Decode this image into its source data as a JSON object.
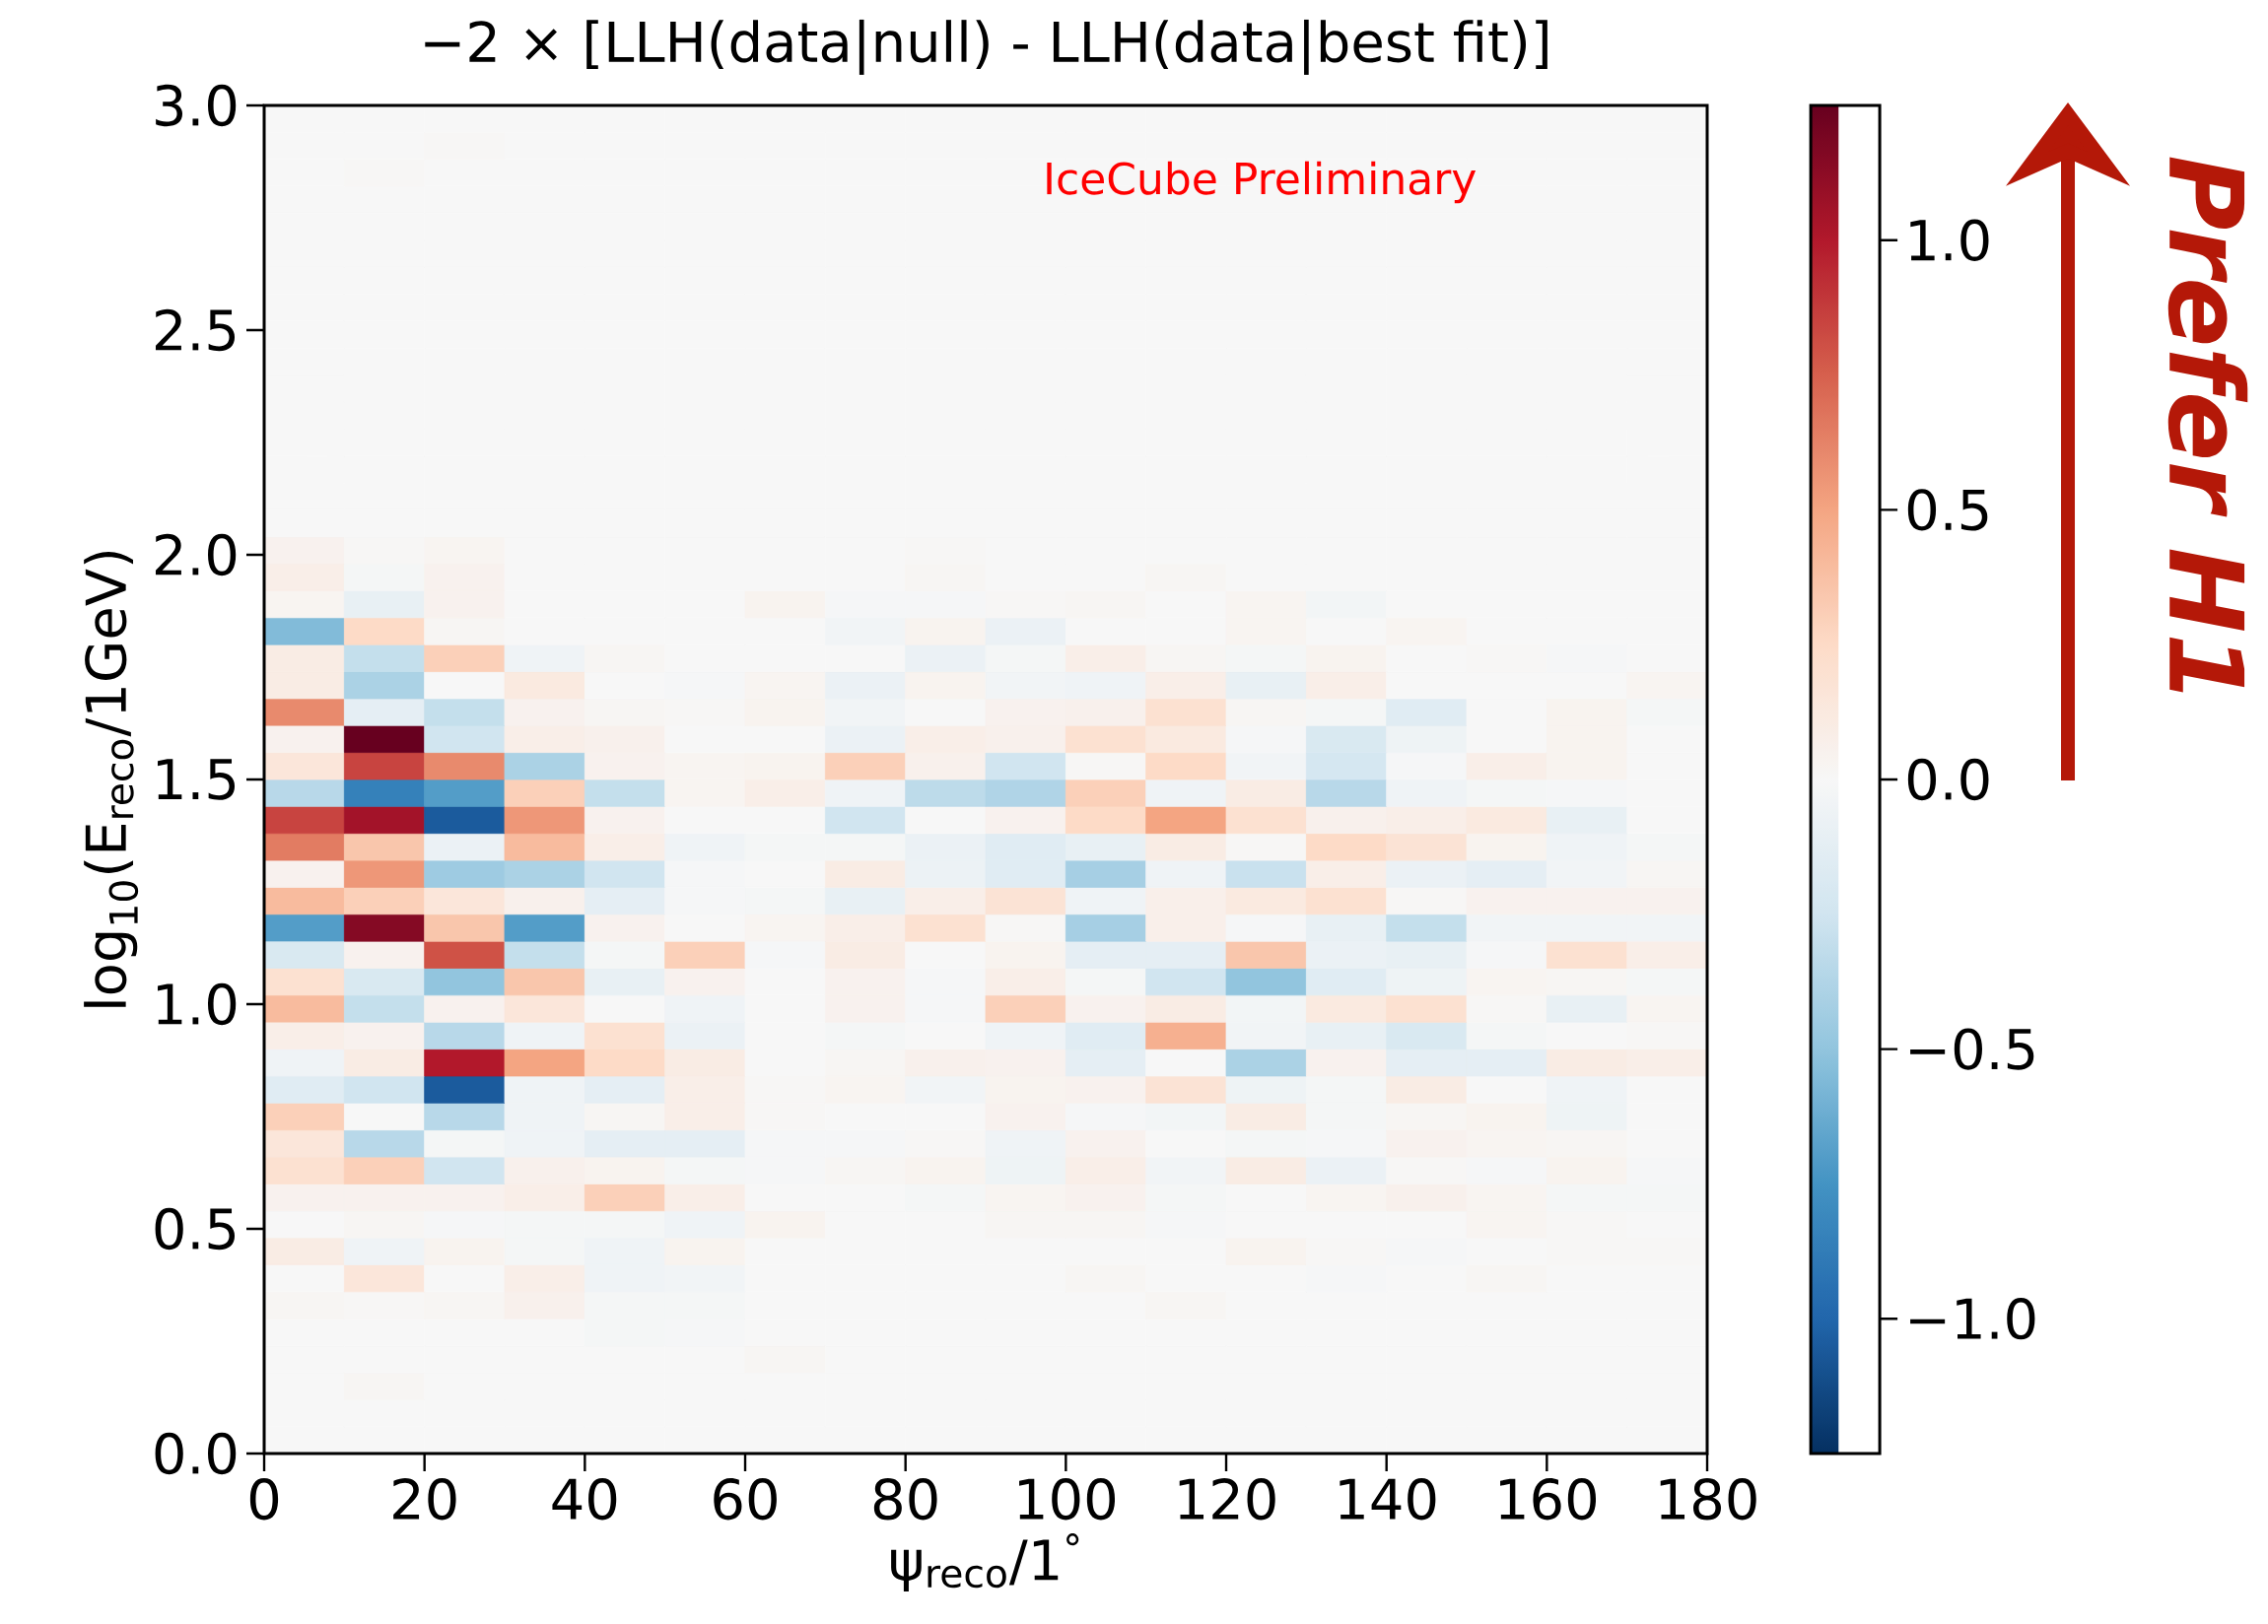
{
  "chart_data": {
    "type": "heatmap",
    "title": "−2 ×  [LLH(data|null) - LLH(data|best fit)]",
    "xlabel": "ψ$_{reco}$/1$^{°}$",
    "ylabel": "log$_{10}$(E$_{reco}$/1GeV)",
    "annotations": [
      "IceCube Preliminary",
      "Prefer H1"
    ],
    "xlim": [
      0,
      180
    ],
    "ylim": [
      0,
      3
    ],
    "xticks": [
      0,
      20,
      40,
      60,
      80,
      100,
      120,
      140,
      160,
      180
    ],
    "yticks": [
      {
        "value": 0,
        "label": "0.0"
      },
      {
        "value": 0.5,
        "label": "0.5"
      },
      {
        "value": 1,
        "label": "1.0"
      },
      {
        "value": 1.5,
        "label": "1.5"
      },
      {
        "value": 2,
        "label": "2.0"
      },
      {
        "value": 2.5,
        "label": "2.5"
      },
      {
        "value": 3,
        "label": "3.0"
      }
    ],
    "clim": [
      -1.25,
      1.25
    ],
    "cticks": [
      {
        "value": -1,
        "label": "−1.0"
      },
      {
        "value": -0.5,
        "label": "−0.5"
      },
      {
        "value": 0,
        "label": "0.0"
      },
      {
        "value": 0.5,
        "label": "0.5"
      },
      {
        "value": 1,
        "label": "1.0"
      }
    ],
    "cells": [
      [
        0,
        0,
        0,
        0,
        0,
        0,
        0,
        0,
        0,
        0,
        0,
        0,
        0,
        0,
        0,
        0,
        0,
        0
      ],
      [
        0,
        0,
        0.01,
        0,
        0,
        0,
        0,
        0,
        0,
        0,
        0,
        0,
        0,
        0,
        0,
        0,
        0,
        0
      ],
      [
        0,
        0.01,
        0,
        0,
        0,
        0,
        0,
        0,
        0,
        0,
        0,
        0,
        0,
        0,
        0,
        0,
        0,
        0
      ],
      [
        0,
        0,
        0,
        0,
        0,
        0,
        0,
        0,
        0,
        0,
        0,
        0,
        0,
        0,
        0,
        0,
        0,
        0
      ],
      [
        0,
        0,
        0,
        0,
        0,
        0,
        0,
        0,
        0,
        0,
        0,
        0,
        0,
        0,
        0,
        0,
        0,
        0
      ],
      [
        0,
        0,
        0,
        0,
        0,
        0,
        0,
        0,
        0,
        0,
        0,
        0,
        0,
        0,
        0,
        0,
        0,
        0
      ],
      [
        0,
        0,
        0,
        0,
        0,
        0,
        0,
        0,
        0,
        0,
        0,
        0,
        0,
        0,
        0,
        0,
        0,
        0
      ],
      [
        0,
        0,
        0,
        0,
        0,
        0,
        0,
        0,
        0,
        0,
        0,
        0,
        0,
        0,
        0,
        0,
        0,
        0
      ],
      [
        0,
        0,
        0,
        0,
        0,
        0,
        0,
        0,
        0,
        0,
        0,
        0,
        0,
        0,
        0,
        0,
        0,
        0
      ],
      [
        0,
        0,
        0,
        0,
        0,
        0,
        0,
        0,
        0,
        0,
        0,
        0,
        0,
        0,
        0,
        0,
        0,
        0
      ],
      [
        0,
        0,
        0,
        0,
        0,
        0,
        0,
        0,
        0,
        0,
        0,
        0,
        0,
        0,
        0,
        0,
        0,
        0
      ],
      [
        0,
        0,
        0,
        0,
        0,
        0,
        0,
        0,
        0,
        0,
        0,
        0,
        0,
        0,
        0,
        0,
        0,
        0
      ],
      [
        0,
        0,
        0,
        0,
        0,
        0,
        0,
        0,
        0,
        0,
        0,
        0,
        0,
        0,
        0,
        0,
        0,
        0
      ],
      [
        0,
        0,
        0,
        0,
        0,
        0,
        0,
        0,
        0,
        0,
        0,
        0,
        0,
        0,
        0,
        0,
        0,
        0
      ],
      [
        0,
        0,
        0,
        0,
        0,
        0,
        0,
        0,
        0,
        0,
        0,
        0,
        0,
        0,
        0,
        0,
        0,
        0
      ],
      [
        0,
        0,
        0,
        0,
        0,
        0,
        0,
        0,
        0,
        0,
        0,
        0,
        0,
        0,
        0,
        0,
        0,
        0
      ],
      [
        0.05,
        0.01,
        0.03,
        0,
        0,
        0,
        0,
        0,
        0.01,
        0,
        0,
        0,
        0,
        0,
        0,
        0,
        0,
        0
      ],
      [
        0.08,
        -0.02,
        0.05,
        0,
        0,
        0,
        0,
        0,
        0.02,
        0,
        0,
        0.02,
        0,
        0,
        0,
        0,
        0,
        0
      ],
      [
        0.03,
        -0.1,
        0.05,
        0,
        0,
        0,
        0.04,
        -0.01,
        -0.01,
        0.01,
        0.02,
        0,
        0.03,
        -0.03,
        0,
        0,
        0,
        0
      ],
      [
        -0.55,
        0.25,
        0.02,
        0,
        0,
        0,
        0,
        -0.04,
        0.04,
        -0.08,
        0,
        0,
        0.03,
        0,
        0.03,
        0,
        0,
        0
      ],
      [
        0.1,
        -0.3,
        0.3,
        -0.05,
        0.02,
        0,
        0,
        0,
        -0.08,
        -0.02,
        0.08,
        0.02,
        -0.02,
        0.04,
        0,
        0.01,
        -0.01,
        0
      ],
      [
        0.1,
        -0.4,
        0,
        0.12,
        0,
        -0.01,
        0.03,
        -0.08,
        0.04,
        -0.04,
        -0.05,
        0.08,
        -0.1,
        0.08,
        0,
        0,
        0,
        0.03
      ],
      [
        0.6,
        -0.12,
        -0.3,
        0.05,
        0.02,
        0.01,
        0.04,
        -0.04,
        0,
        0.05,
        0.06,
        0.2,
        0.02,
        -0.02,
        -0.15,
        0,
        0.04,
        -0.02
      ],
      [
        0.05,
        1.25,
        -0.25,
        0.08,
        0.06,
        0,
        0,
        -0.08,
        0.08,
        0.06,
        0.2,
        0.12,
        -0.01,
        -0.2,
        -0.06,
        0,
        0.04,
        0
      ],
      [
        0.15,
        0.85,
        0.6,
        -0.4,
        0.05,
        0.03,
        0.04,
        0.3,
        0.06,
        -0.25,
        0.01,
        0.25,
        -0.04,
        -0.22,
        -0.01,
        0.08,
        0.04,
        0
      ],
      [
        -0.35,
        -0.85,
        -0.7,
        0.3,
        -0.3,
        0.03,
        0.08,
        -0.05,
        -0.33,
        -0.38,
        0.3,
        -0.05,
        0.1,
        -0.35,
        -0.05,
        -0.02,
        -0.01,
        0
      ],
      [
        0.85,
        1.05,
        -1.05,
        0.55,
        0.05,
        0,
        0,
        -0.25,
        0,
        0.05,
        0.25,
        0.5,
        0.2,
        0.06,
        0.08,
        0.12,
        -0.1,
        0
      ],
      [
        0.65,
        0.35,
        -0.08,
        0.4,
        0.08,
        -0.05,
        -0.02,
        -0.02,
        -0.08,
        -0.15,
        -0.1,
        0.1,
        0.01,
        0.25,
        0.18,
        0.04,
        -0.05,
        -0.02
      ],
      [
        0.05,
        0.55,
        -0.45,
        -0.4,
        -0.25,
        -0.01,
        0,
        0.1,
        -0.07,
        -0.15,
        -0.42,
        -0.05,
        -0.28,
        0.08,
        -0.08,
        -0.12,
        -0.04,
        0.02
      ],
      [
        0.4,
        0.3,
        0.15,
        0.06,
        -0.12,
        -0.01,
        -0.02,
        -0.1,
        0.08,
        0.18,
        -0.05,
        0.07,
        0.12,
        0.2,
        0.01,
        0.05,
        0.05,
        0.05
      ],
      [
        -0.7,
        1.15,
        0.35,
        -0.7,
        0.05,
        0,
        0.03,
        0.08,
        0.2,
        0.01,
        -0.42,
        0.07,
        -0.01,
        -0.1,
        -0.3,
        -0.04,
        -0.04,
        -0.04
      ],
      [
        -0.2,
        0.05,
        0.8,
        -0.3,
        -0.02,
        0.3,
        -0.01,
        0.1,
        0,
        0.04,
        -0.12,
        -0.12,
        0.35,
        -0.08,
        -0.1,
        -0.01,
        0.2,
        0.08
      ],
      [
        0.2,
        -0.2,
        -0.5,
        0.35,
        -0.1,
        0.05,
        0,
        0.05,
        -0.01,
        0.08,
        -0.02,
        -0.25,
        -0.5,
        -0.15,
        -0.06,
        0.03,
        0.02,
        -0.02
      ],
      [
        0.4,
        -0.3,
        0.05,
        0.15,
        0,
        -0.05,
        0,
        0.05,
        -0.01,
        0.3,
        0.05,
        0.1,
        -0.03,
        0.12,
        0.2,
        0.01,
        -0.1,
        0.03
      ],
      [
        0.08,
        0.05,
        -0.35,
        -0.05,
        0.2,
        -0.08,
        0,
        -0.02,
        0,
        -0.05,
        -0.15,
        0.45,
        -0.04,
        -0.1,
        -0.2,
        -0.02,
        0,
        0.01
      ],
      [
        -0.05,
        0.1,
        1.0,
        0.5,
        0.25,
        0.1,
        0,
        0.02,
        0.06,
        0.05,
        -0.12,
        0,
        -0.4,
        0.05,
        -0.12,
        -0.12,
        0.1,
        0.08
      ],
      [
        -0.15,
        -0.25,
        -1.05,
        -0.05,
        -0.12,
        0.08,
        0.01,
        0.03,
        -0.04,
        0.04,
        0.05,
        0.18,
        -0.06,
        -0.02,
        0.1,
        0,
        -0.05,
        0
      ],
      [
        0.3,
        0,
        -0.35,
        -0.05,
        0.02,
        0.08,
        0.01,
        0,
        0,
        0.05,
        -0.01,
        -0.03,
        0.1,
        -0.02,
        0.02,
        0.04,
        -0.06,
        0
      ],
      [
        0.15,
        -0.35,
        -0.02,
        -0.05,
        -0.12,
        -0.12,
        -0.01,
        -0.01,
        0.01,
        -0.05,
        0.05,
        0,
        -0.02,
        -0.01,
        0.05,
        0.03,
        0.02,
        0
      ],
      [
        0.2,
        0.3,
        -0.25,
        0.06,
        0.04,
        -0.02,
        -0.01,
        0.02,
        0.04,
        -0.06,
        0.08,
        -0.04,
        0.1,
        -0.08,
        0.01,
        -0.01,
        0.04,
        -0.01
      ],
      [
        0.05,
        0.05,
        0.05,
        0.08,
        0.3,
        0.08,
        0,
        0,
        -0.02,
        0.03,
        0.05,
        -0.02,
        0,
        0.03,
        0.06,
        0.03,
        -0.02,
        -0.02
      ],
      [
        0,
        0.02,
        -0.01,
        -0.02,
        -0.02,
        -0.05,
        0.04,
        0,
        0,
        0.02,
        0.02,
        -0.01,
        0,
        0,
        0,
        0.03,
        0.01,
        0
      ],
      [
        0.1,
        -0.05,
        0.04,
        -0.02,
        -0.05,
        0.04,
        0,
        0,
        0,
        0,
        0,
        0,
        0.04,
        0.01,
        -0.01,
        0,
        0.01,
        0.01
      ],
      [
        0,
        0.15,
        0,
        0.08,
        -0.05,
        -0.04,
        0,
        0,
        0,
        0,
        0.02,
        0,
        0,
        -0.01,
        0,
        0.02,
        0,
        0
      ],
      [
        0.02,
        0.01,
        0.02,
        0.06,
        -0.02,
        -0.02,
        0,
        0,
        0,
        0,
        0,
        0.02,
        0,
        0,
        0,
        0,
        0,
        0
      ],
      [
        0,
        0,
        0,
        0,
        -0.02,
        -0.01,
        0,
        0,
        0,
        0,
        0,
        0,
        0,
        0,
        0,
        0,
        0,
        0
      ],
      [
        0,
        0,
        0,
        0,
        0,
        0,
        0.02,
        0,
        0,
        0,
        0,
        0,
        0,
        0,
        0,
        0,
        0,
        0
      ],
      [
        0,
        0.02,
        0,
        0,
        0,
        0,
        0,
        0,
        0,
        0,
        0,
        0,
        0,
        0,
        0,
        0,
        0,
        0
      ],
      [
        0,
        0,
        0,
        0,
        0,
        0,
        0,
        0,
        0,
        0,
        0,
        0,
        0,
        0,
        0,
        0,
        0,
        0
      ],
      [
        0,
        0,
        0,
        0,
        0,
        0,
        0,
        0,
        0,
        0,
        0,
        0,
        0,
        0,
        0,
        0,
        0,
        0
      ]
    ]
  }
}
